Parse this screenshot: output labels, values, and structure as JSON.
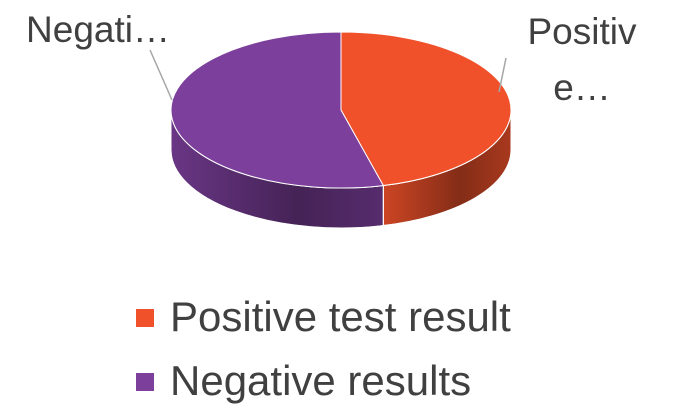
{
  "chart_data": {
    "type": "pie",
    "categories": [
      "Positive test result",
      "Negative results"
    ],
    "values": [
      46,
      54
    ],
    "colors": [
      "#f0512a",
      "#7c3f9c"
    ],
    "slice_labels": [
      [
        "Positiv",
        "e…"
      ],
      [
        "Negati…"
      ]
    ],
    "legend": "bottom"
  }
}
